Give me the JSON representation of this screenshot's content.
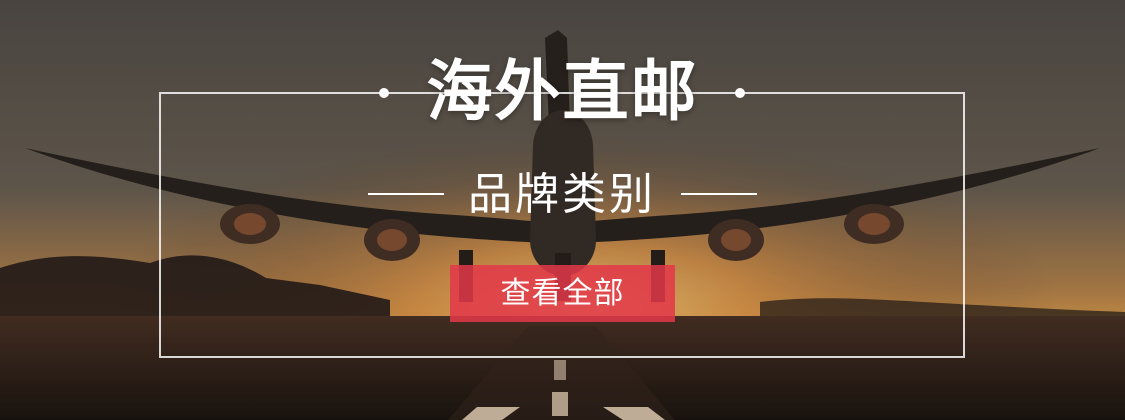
{
  "banner": {
    "title": "海外直邮",
    "subtitle": "品牌类别",
    "cta_label": "查看全部"
  },
  "colors": {
    "cta_background": "#e23848",
    "text": "#ffffff",
    "frame": "#ffffff"
  }
}
